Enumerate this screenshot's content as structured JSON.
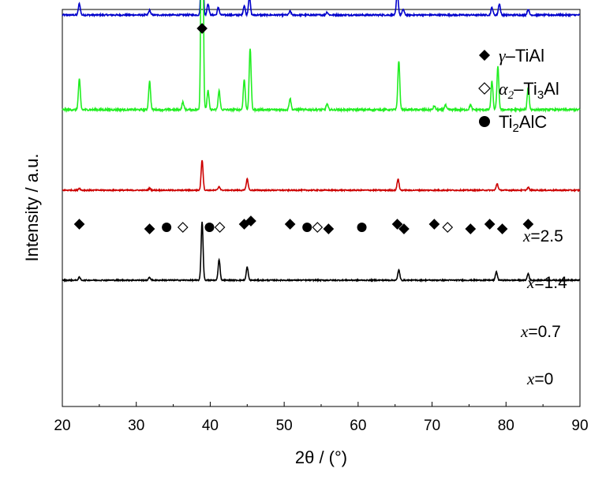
{
  "chart_data": {
    "type": "line",
    "xlabel": "2θ / (°)",
    "ylabel": "Intensity / a.u.",
    "xlim": [
      20,
      90
    ],
    "xticks": [
      20,
      30,
      40,
      50,
      60,
      70,
      80,
      90
    ],
    "series": [
      {
        "name": "x=2.5",
        "label_var": "x",
        "label_val": "=2.5",
        "color": "#0000cc",
        "baseline": 3.4,
        "noise": 0.008,
        "peaks": [
          [
            22.3,
            0.12
          ],
          [
            31.8,
            0.05
          ],
          [
            38.9,
            1.1
          ],
          [
            39.7,
            0.12
          ],
          [
            41.1,
            0.08
          ],
          [
            44.6,
            0.1
          ],
          [
            45.3,
            0.2
          ],
          [
            50.8,
            0.04
          ],
          [
            55.8,
            0.03
          ],
          [
            65.3,
            0.24
          ],
          [
            66.1,
            0.06
          ],
          [
            78.1,
            0.08
          ],
          [
            79.1,
            0.12
          ],
          [
            83.0,
            0.06
          ]
        ]
      },
      {
        "name": "x=1.4",
        "label_var": "x",
        "label_val": "=1.4",
        "color": "#22ee22",
        "baseline": 2.4,
        "noise": 0.01,
        "peaks": [
          [
            22.3,
            0.32
          ],
          [
            31.8,
            0.3
          ],
          [
            36.3,
            0.08
          ],
          [
            38.9,
            3.65
          ],
          [
            39.7,
            0.2
          ],
          [
            41.2,
            0.2
          ],
          [
            44.6,
            0.32
          ],
          [
            45.4,
            0.65
          ],
          [
            50.8,
            0.12
          ],
          [
            55.8,
            0.06
          ],
          [
            65.5,
            0.52
          ],
          [
            70.3,
            0.04
          ],
          [
            71.8,
            0.05
          ],
          [
            75.2,
            0.05
          ],
          [
            78.1,
            0.3
          ],
          [
            78.9,
            0.45
          ],
          [
            83.0,
            0.24
          ]
        ]
      },
      {
        "name": "x=0.7",
        "label_var": "x",
        "label_val": "=0.7",
        "color": "#cc0000",
        "baseline": 1.55,
        "noise": 0.006,
        "peaks": [
          [
            22.3,
            0.02
          ],
          [
            31.8,
            0.02
          ],
          [
            38.9,
            0.32
          ],
          [
            41.2,
            0.04
          ],
          [
            45.0,
            0.12
          ],
          [
            65.4,
            0.12
          ],
          [
            78.8,
            0.07
          ],
          [
            83.0,
            0.03
          ]
        ]
      },
      {
        "name": "x=0",
        "label_var": "x",
        "label_val": "=0",
        "color": "#000000",
        "baseline": 0.6,
        "noise": 0.006,
        "peaks": [
          [
            22.3,
            0.03
          ],
          [
            31.8,
            0.03
          ],
          [
            38.9,
            0.62
          ],
          [
            41.2,
            0.22
          ],
          [
            45.0,
            0.14
          ],
          [
            65.5,
            0.11
          ],
          [
            78.7,
            0.09
          ],
          [
            83.0,
            0.07
          ]
        ]
      }
    ],
    "markers": {
      "gamma_TiAl": [
        38.9,
        22.3,
        31.8,
        44.6,
        45.5,
        50.8,
        56.0,
        65.3,
        66.2,
        70.3,
        75.2,
        77.8,
        79.5,
        83.0
      ],
      "alpha2_Ti3Al": [
        36.3,
        41.3,
        54.5,
        72.1
      ],
      "Ti2AlC": [
        34.1,
        39.9,
        53.1,
        60.5
      ]
    },
    "legend": {
      "position": "top-right",
      "items": [
        {
          "marker": "filled-diamond",
          "sym": "γ",
          "sub": "",
          "text": "–TiAl",
          "sub2": "",
          "tail": ""
        },
        {
          "marker": "open-diamond",
          "sym": "α",
          "sub": "2",
          "text": "–Ti",
          "sub2": "3",
          "tail": "Al"
        },
        {
          "marker": "filled-circle",
          "sym": "",
          "sub": "",
          "text": "Ti",
          "sub2": "2",
          "tail": "AlC"
        }
      ]
    }
  }
}
